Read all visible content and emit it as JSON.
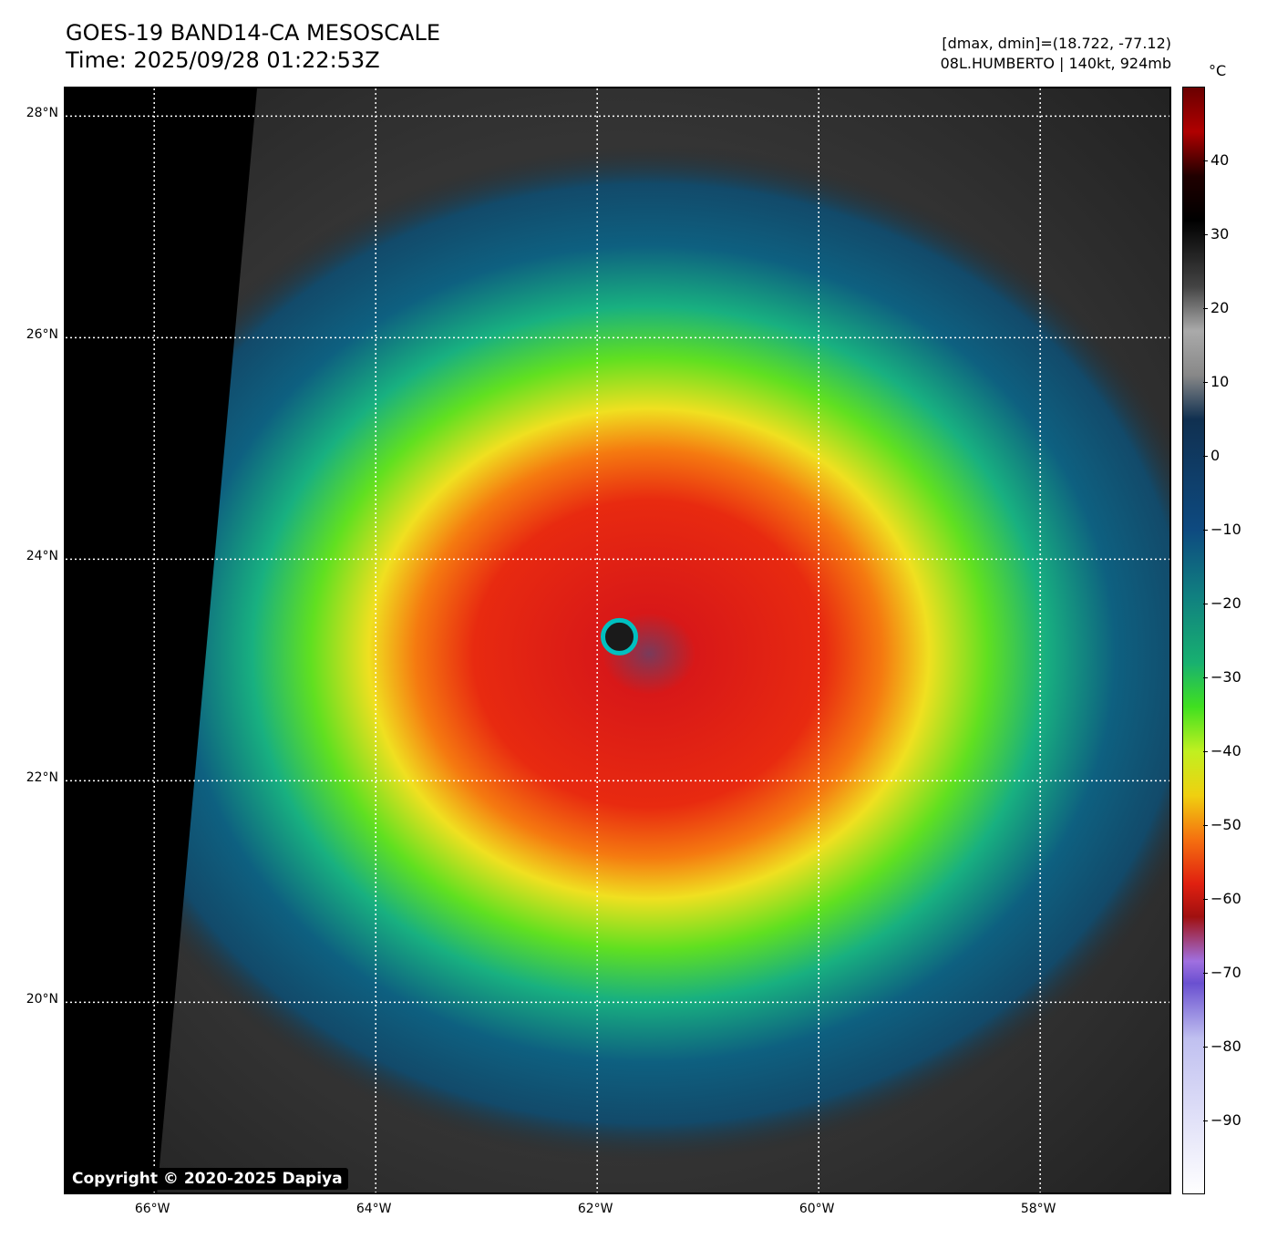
{
  "header": {
    "title_line1": "GOES-19 BAND14-CA MESOSCALE",
    "title_line2": "Time: 2025/09/28 01:22:53Z",
    "info_line1": "[dmax, dmin]=(18.722, -77.12)",
    "info_line2": "08L.HUMBERTO | 140kt, 924mb"
  },
  "map": {
    "lat_labels": [
      "28°N",
      "26°N",
      "24°N",
      "22°N",
      "20°N"
    ],
    "lat_values": [
      28,
      26,
      24,
      22,
      20
    ],
    "lon_labels": [
      "66°W",
      "64°W",
      "62°W",
      "60°W",
      "58°W"
    ],
    "lon_values": [
      -66,
      -64,
      -62,
      -60,
      -58
    ],
    "lat_range": [
      18.25,
      28.25
    ],
    "lon_range": [
      -66.8,
      -56.8
    ],
    "storm_center": {
      "lat": 23.3,
      "lon": -61.8
    }
  },
  "colorbar": {
    "unit": "°C",
    "tick_labels": [
      "40",
      "30",
      "20",
      "10",
      "0",
      "−10",
      "−20",
      "−30",
      "−40",
      "−50",
      "−60",
      "−70",
      "−80",
      "−90"
    ],
    "tick_values": [
      40,
      30,
      20,
      10,
      0,
      -10,
      -20,
      -30,
      -40,
      -50,
      -60,
      -70,
      -80,
      -90
    ],
    "range": [
      -100,
      50
    ]
  },
  "copyright": "Copyright © 2020-2025 Dapiya"
}
